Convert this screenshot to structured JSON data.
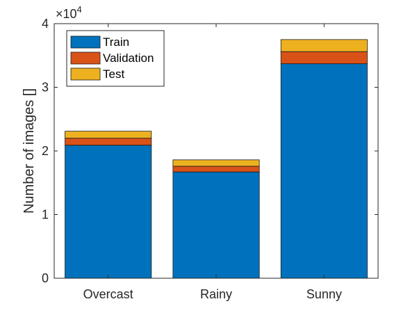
{
  "chart_data": {
    "type": "bar",
    "stacked": true,
    "categories": [
      "Overcast",
      "Rainy",
      "Sunny"
    ],
    "series": [
      {
        "name": "Train",
        "values": [
          20900,
          16700,
          33700
        ],
        "color": "#0072BD"
      },
      {
        "name": "Validation",
        "values": [
          1100,
          900,
          1900
        ],
        "color": "#D95319"
      },
      {
        "name": "Test",
        "values": [
          1100,
          1000,
          1900
        ],
        "color": "#EDB120"
      }
    ],
    "title": "",
    "xlabel": "",
    "ylabel": "Number of images []",
    "ylim": [
      0,
      40000
    ],
    "y_exponent_label": "×10",
    "y_exponent_power": "4",
    "yticks": [
      0,
      10000,
      20000,
      30000,
      40000
    ],
    "ytick_labels": [
      "0",
      "1",
      "2",
      "3",
      "4"
    ],
    "legend_position": "top-left",
    "grid": false
  }
}
